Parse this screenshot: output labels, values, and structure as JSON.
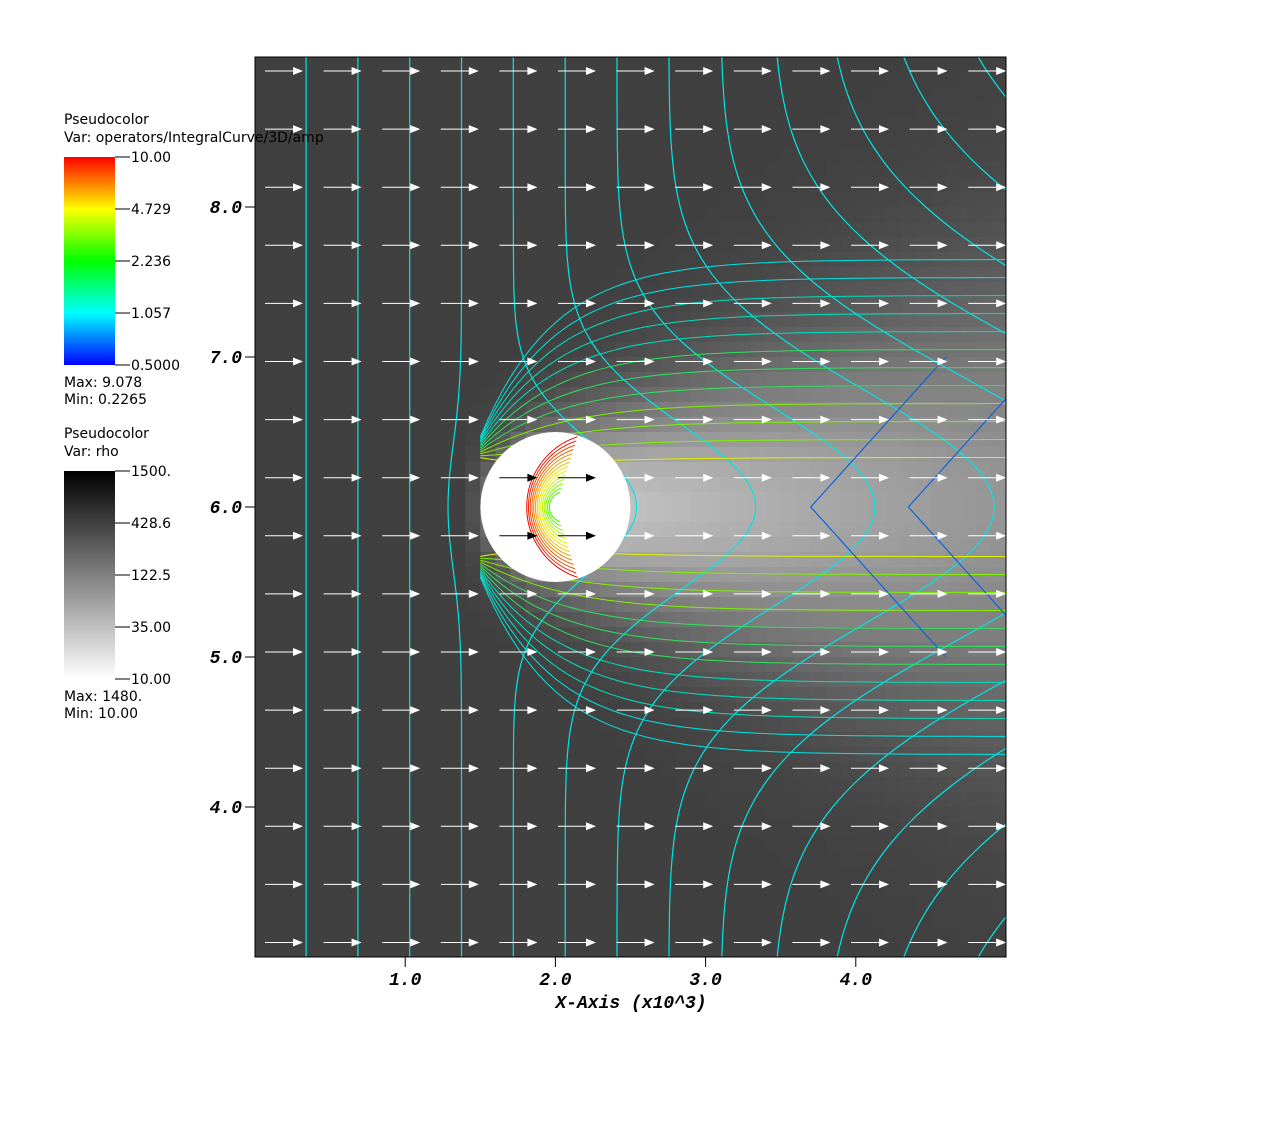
{
  "chart_data": {
    "type": "vector-field",
    "xlabel": "X-Axis (x10^3)",
    "xlim": [
      0,
      5.0
    ],
    "ylim": [
      3.0,
      9.0
    ],
    "xticks": [
      {
        "value": 1,
        "label": "1.0"
      },
      {
        "value": 2,
        "label": "2.0"
      },
      {
        "value": 3,
        "label": "3.0"
      },
      {
        "value": 4,
        "label": "4.0"
      }
    ],
    "yticks": [
      {
        "value": 4,
        "label": "4.0"
      },
      {
        "value": 5,
        "label": "5.0"
      },
      {
        "value": 6,
        "label": "6.0"
      },
      {
        "value": 7,
        "label": "7.0"
      },
      {
        "value": 8,
        "label": "8.0"
      }
    ],
    "legends": [
      {
        "title": "Pseudocolor",
        "variable": "Var: operators/IntegralCurve/3D/amp",
        "log": true,
        "range": [
          0.5,
          10
        ],
        "colors": [
          "#0000ff",
          "#00ffff",
          "#00ff00",
          "#ffff00",
          "#ff0000"
        ],
        "ticks": [
          {
            "value": 10,
            "label": "10.00"
          },
          {
            "value": 4.729,
            "label": "4.729"
          },
          {
            "value": 2.236,
            "label": "2.236"
          },
          {
            "value": 1.057,
            "label": "1.057"
          },
          {
            "value": 0.5,
            "label": "0.5000"
          }
        ],
        "max": "Max: 9.078",
        "min": "Min: 0.2265"
      },
      {
        "title": "Pseudocolor",
        "variable": "Var: rho",
        "log": true,
        "range": [
          10,
          1500
        ],
        "colors": [
          "#ffffff",
          "#000000"
        ],
        "ticks": [
          {
            "value": 1500,
            "label": "1500."
          },
          {
            "value": 428.6,
            "label": "428.6"
          },
          {
            "value": 122.5,
            "label": "122.5"
          },
          {
            "value": 35,
            "label": "35.00"
          },
          {
            "value": 10,
            "label": "10.00"
          }
        ],
        "max": "Max: 1480.",
        "min": "Min: 10.00"
      }
    ]
  }
}
